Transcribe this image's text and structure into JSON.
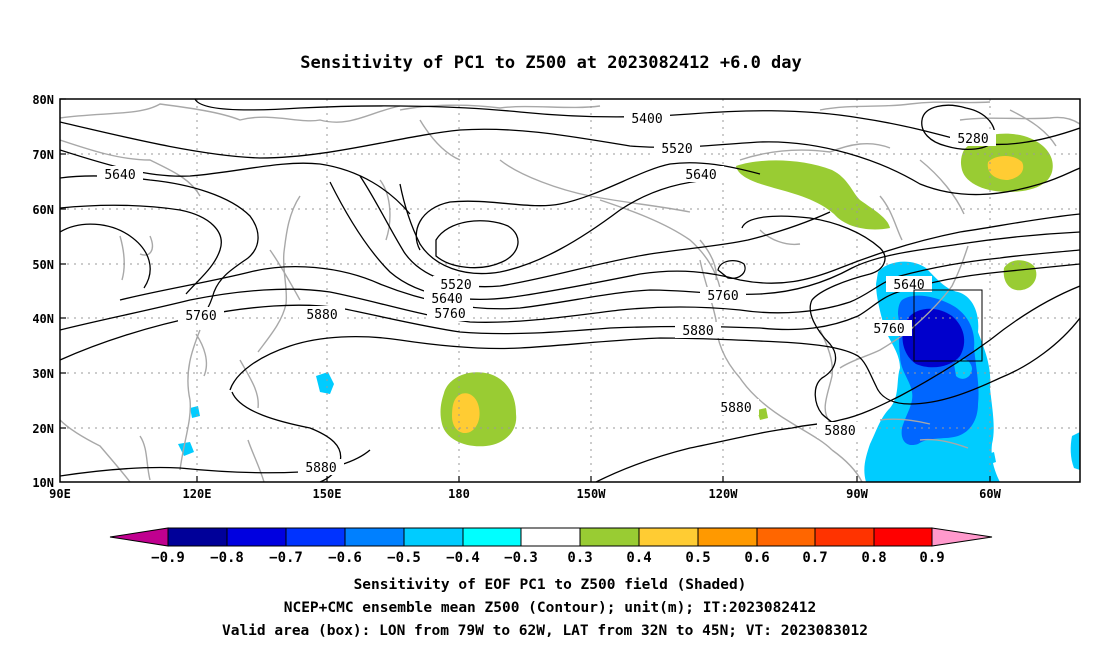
{
  "title": "Sensitivity of PC1 to Z500 at 2023082412 +6.0 day",
  "map": {
    "lat_labels": [
      "80N",
      "70N",
      "60N",
      "50N",
      "40N",
      "30N",
      "20N",
      "10N"
    ],
    "lon_labels": [
      "90E",
      "120E",
      "150E",
      "180",
      "150W",
      "120W",
      "90W",
      "60W"
    ],
    "contour_labels": [
      "5400",
      "5520",
      "5640",
      "5280",
      "5640",
      "5520",
      "5640",
      "5760",
      "5760",
      "5880",
      "5760",
      "5640",
      "5760",
      "5880",
      "5880",
      "5880",
      "5880"
    ],
    "colors": {
      "coast": "#a8a8a8",
      "grid": "#9a9a9a",
      "positive_low": "#99cc33",
      "positive_mid": "#ffcc33",
      "negative_outer": "#00ccff",
      "negative_mid": "#0066ff",
      "negative_inner": "#0000cc"
    },
    "valid_box": {
      "lon_west": "79W",
      "lon_east": "62W",
      "lat_south": "32N",
      "lat_north": "45N"
    }
  },
  "colorbar": {
    "labels": [
      "−0.9",
      "−0.8",
      "−0.7",
      "−0.6",
      "−0.5",
      "−0.4",
      "−0.3",
      "0.3",
      "0.4",
      "0.5",
      "0.6",
      "0.7",
      "0.8",
      "0.9"
    ],
    "colors": [
      "#c0008f",
      "#000099",
      "#0000e0",
      "#0033ff",
      "#0080ff",
      "#00ccff",
      "#00ffff",
      "#ffffff",
      "#99cc33",
      "#ffcc33",
      "#ff9900",
      "#ff6600",
      "#ff3300",
      "#ff0000",
      "#ff99cc"
    ]
  },
  "footer": {
    "line1": "Sensitivity of EOF PC1 to Z500 field (Shaded)",
    "line2": "NCEP+CMC ensemble mean Z500 (Contour); unit(m); IT:2023082412",
    "line3": "Valid area (box): LON from 79W to 62W, LAT from 32N to 45N; VT: 2023083012"
  }
}
